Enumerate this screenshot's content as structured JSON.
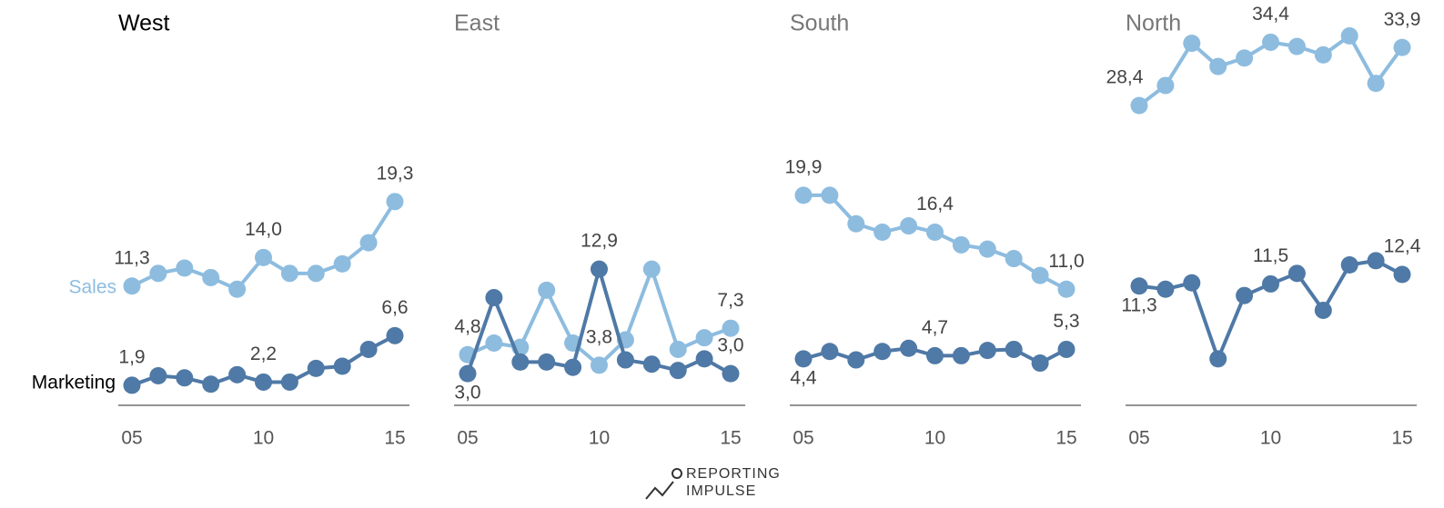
{
  "chart_data": [
    {
      "type": "line",
      "title": "West",
      "x": [
        5,
        6,
        7,
        8,
        9,
        10,
        11,
        12,
        13,
        14,
        15
      ],
      "xlim": [
        5,
        15
      ],
      "xticks": [
        {
          "value": 5,
          "label": "05"
        },
        10,
        15
      ],
      "ylim": [
        0,
        38.4
      ],
      "series": [
        {
          "name": "Sales",
          "color": "#8dbcdf",
          "values": [
            11.3,
            12.5,
            13.0,
            12.1,
            11.0,
            14.0,
            12.5,
            12.5,
            13.4,
            15.4,
            19.3
          ],
          "value_labels": [
            "11,3",
            null,
            null,
            null,
            null,
            "14,0",
            null,
            null,
            null,
            null,
            "19,3"
          ]
        },
        {
          "name": "Marketing",
          "color": "#4f79a6",
          "values": [
            1.9,
            2.8,
            2.6,
            2.0,
            2.9,
            2.2,
            2.2,
            3.5,
            3.7,
            5.3,
            6.6
          ],
          "value_labels": [
            "1,9",
            null,
            null,
            null,
            null,
            "2,2",
            null,
            null,
            null,
            null,
            "6,6"
          ]
        }
      ]
    },
    {
      "type": "line",
      "title": "East",
      "x": [
        5,
        6,
        7,
        8,
        9,
        10,
        11,
        12,
        13,
        14,
        15
      ],
      "xlim": [
        5,
        15
      ],
      "xticks": [
        {
          "value": 5,
          "label": "05"
        },
        10,
        15
      ],
      "ylim": [
        0,
        38.4
      ],
      "series": [
        {
          "name": "Sales",
          "color": "#8dbcdf",
          "values": [
            4.8,
            5.9,
            5.5,
            10.9,
            5.9,
            3.8,
            6.2,
            12.9,
            5.3,
            6.4,
            7.3
          ],
          "value_labels": [
            "4,8",
            null,
            null,
            null,
            null,
            "3,8",
            null,
            null,
            null,
            null,
            "7,3"
          ]
        },
        {
          "name": "Marketing",
          "color": "#4f79a6",
          "values": [
            3.0,
            10.2,
            4.1,
            4.1,
            3.6,
            12.9,
            4.3,
            3.9,
            3.3,
            4.4,
            3.0
          ],
          "value_labels": [
            "3,0",
            null,
            null,
            null,
            null,
            "12,9",
            null,
            null,
            null,
            null,
            "3,0"
          ]
        }
      ]
    },
    {
      "type": "line",
      "title": "South",
      "x": [
        5,
        6,
        7,
        8,
        9,
        10,
        11,
        12,
        13,
        14,
        15
      ],
      "xlim": [
        5,
        15
      ],
      "xticks": [
        {
          "value": 5,
          "label": "05"
        },
        10,
        15
      ],
      "ylim": [
        0,
        38.4
      ],
      "series": [
        {
          "name": "Sales",
          "color": "#8dbcdf",
          "values": [
            19.9,
            19.9,
            17.2,
            16.4,
            17.0,
            16.4,
            15.2,
            14.8,
            13.9,
            12.3,
            11.0
          ],
          "value_labels": [
            "19,9",
            null,
            null,
            null,
            null,
            "16,4",
            null,
            null,
            null,
            null,
            "11,0"
          ]
        },
        {
          "name": "Marketing",
          "color": "#4f79a6",
          "values": [
            4.4,
            5.1,
            4.3,
            5.1,
            5.4,
            4.7,
            4.7,
            5.2,
            5.3,
            4.0,
            5.3
          ],
          "value_labels": [
            "4,4",
            null,
            null,
            null,
            null,
            "4,7",
            null,
            null,
            null,
            null,
            "5,3"
          ]
        }
      ]
    },
    {
      "type": "line",
      "title": "North",
      "x": [
        5,
        6,
        7,
        8,
        9,
        10,
        11,
        12,
        13,
        14,
        15
      ],
      "xlim": [
        5,
        15
      ],
      "xticks": [
        {
          "value": 5,
          "label": "05"
        },
        10,
        15
      ],
      "ylim": [
        0,
        38.4
      ],
      "series": [
        {
          "name": "Sales",
          "color": "#8dbcdf",
          "values": [
            28.4,
            30.3,
            34.3,
            32.1,
            32.9,
            34.4,
            34.0,
            33.2,
            35.0,
            30.5,
            33.9
          ],
          "value_labels": [
            "28,4",
            null,
            null,
            null,
            null,
            "34,4",
            null,
            null,
            null,
            null,
            "33,9"
          ]
        },
        {
          "name": "Marketing",
          "color": "#4f79a6",
          "values": [
            11.3,
            11.0,
            11.6,
            4.4,
            10.4,
            11.5,
            12.5,
            9.0,
            13.3,
            13.7,
            12.4
          ],
          "value_labels": [
            "11,3",
            null,
            null,
            null,
            null,
            "11,5",
            null,
            null,
            null,
            null,
            "12,4"
          ]
        }
      ]
    }
  ],
  "logo": [
    "REPORTING",
    "IMPULSE"
  ]
}
